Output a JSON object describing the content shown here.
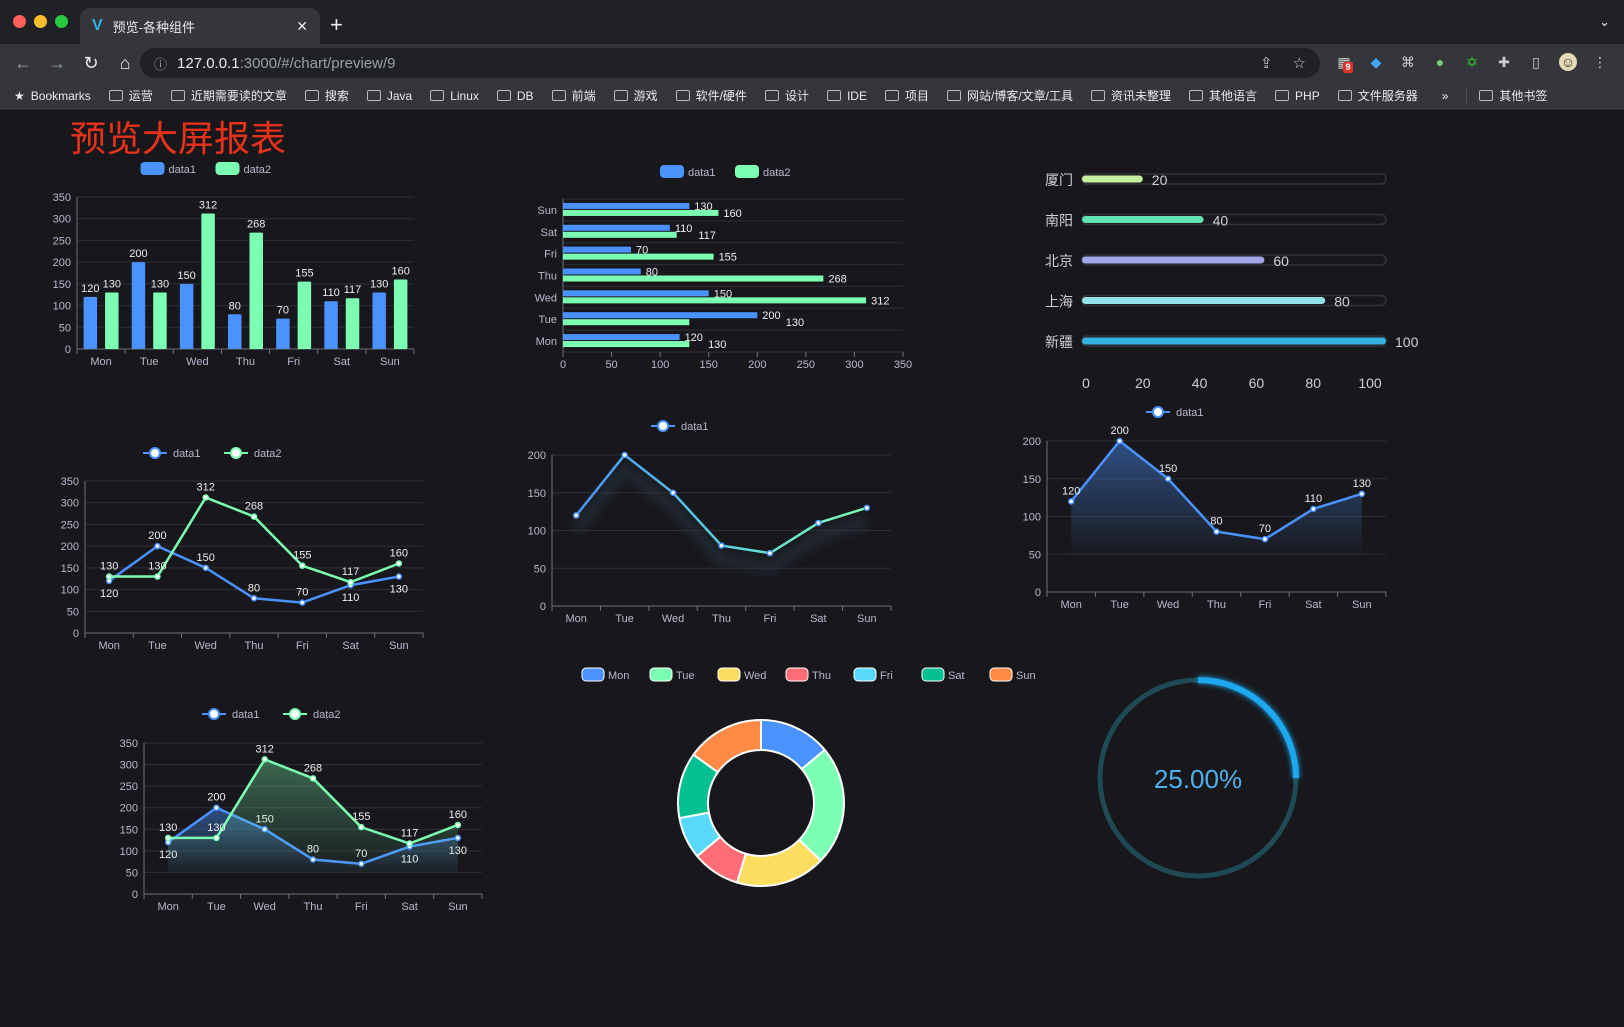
{
  "browser": {
    "tab_title": "预览-各种组件",
    "url_host": "127.0.0.1",
    "url_path": ":3000/#/chart/preview/9",
    "extension_badge": "9",
    "bookmarks": [
      "Bookmarks",
      "运营",
      "近期需要读的文章",
      "搜索",
      "Java",
      "Linux",
      "DB",
      "前端",
      "游戏",
      "软件/硬件",
      "设计",
      "IDE",
      "项目",
      "网站/博客/文章/工具",
      "资讯未整理",
      "其他语言",
      "PHP",
      "文件服务器"
    ],
    "overflow": "»",
    "other_bookmarks": "其他书签"
  },
  "page": {
    "title": "预览大屏报表",
    "title_color": "#e8311a"
  },
  "colors": {
    "data1": "#4992ff",
    "data2": "#7cffb2",
    "grid": "#2e2e34",
    "text": "#b9b8ce"
  },
  "chart_data": [
    {
      "id": "bar-vertical",
      "type": "bar",
      "categories": [
        "Mon",
        "Tue",
        "Wed",
        "Thu",
        "Fri",
        "Sat",
        "Sun"
      ],
      "legend": [
        "data1",
        "data2"
      ],
      "series": [
        {
          "name": "data1",
          "values": [
            120,
            200,
            150,
            80,
            70,
            110,
            130
          ]
        },
        {
          "name": "data2",
          "values": [
            130,
            130,
            312,
            268,
            155,
            117,
            160
          ]
        }
      ],
      "ylim": [
        0,
        350
      ],
      "yticks": [
        0,
        50,
        100,
        150,
        200,
        250,
        300,
        350
      ],
      "grid": true,
      "legend_position": "top"
    },
    {
      "id": "bar-horizontal",
      "type": "bar",
      "orientation": "horizontal",
      "categories": [
        "Mon",
        "Tue",
        "Wed",
        "Thu",
        "Fri",
        "Sat",
        "Sun"
      ],
      "legend": [
        "data1",
        "data2"
      ],
      "series": [
        {
          "name": "data1",
          "values": [
            120,
            200,
            150,
            80,
            70,
            110,
            130
          ]
        },
        {
          "name": "data2",
          "values": [
            130,
            130,
            312,
            268,
            155,
            117,
            160
          ]
        }
      ],
      "xlim": [
        0,
        350
      ],
      "xticks": [
        0,
        50,
        100,
        150,
        200,
        250,
        300,
        350
      ],
      "grid": true,
      "legend_position": "top"
    },
    {
      "id": "progress-bars",
      "type": "bar",
      "orientation": "horizontal",
      "categories": [
        "厦门",
        "南阳",
        "北京",
        "上海",
        "新疆"
      ],
      "values": [
        20,
        40,
        60,
        80,
        100
      ],
      "colors": [
        "#c6f0a0",
        "#62e3b0",
        "#a2a6e8",
        "#92e0e8",
        "#36b1e4"
      ],
      "xlim": [
        0,
        100
      ],
      "xticks": [
        0,
        20,
        40,
        60,
        80,
        100
      ]
    },
    {
      "id": "line-two",
      "type": "line",
      "categories": [
        "Mon",
        "Tue",
        "Wed",
        "Thu",
        "Fri",
        "Sat",
        "Sun"
      ],
      "legend": [
        "data1",
        "data2"
      ],
      "series": [
        {
          "name": "data1",
          "values": [
            120,
            200,
            150,
            80,
            70,
            110,
            130
          ]
        },
        {
          "name": "data2",
          "values": [
            130,
            130,
            312,
            268,
            155,
            117,
            160
          ]
        }
      ],
      "ylim": [
        0,
        350
      ],
      "yticks": [
        0,
        50,
        100,
        150,
        200,
        250,
        300,
        350
      ],
      "grid": true,
      "legend_position": "top"
    },
    {
      "id": "line-gradient",
      "type": "line",
      "categories": [
        "Mon",
        "Tue",
        "Wed",
        "Thu",
        "Fri",
        "Sat",
        "Sun"
      ],
      "legend": [
        "data1"
      ],
      "series": [
        {
          "name": "data1",
          "values": [
            120,
            200,
            150,
            80,
            70,
            110,
            130
          ]
        }
      ],
      "ylim": [
        0,
        200
      ],
      "yticks": [
        0,
        50,
        100,
        150,
        200
      ],
      "grid": true,
      "legend_position": "top"
    },
    {
      "id": "area-single",
      "type": "area",
      "categories": [
        "Mon",
        "Tue",
        "Wed",
        "Thu",
        "Fri",
        "Sat",
        "Sun"
      ],
      "legend": [
        "data1"
      ],
      "series": [
        {
          "name": "data1",
          "values": [
            120,
            200,
            150,
            80,
            70,
            110,
            130
          ]
        }
      ],
      "ylim": [
        0,
        200
      ],
      "yticks": [
        0,
        50,
        100,
        150,
        200
      ],
      "grid": true,
      "legend_position": "top"
    },
    {
      "id": "area-two",
      "type": "area",
      "categories": [
        "Mon",
        "Tue",
        "Wed",
        "Thu",
        "Fri",
        "Sat",
        "Sun"
      ],
      "legend": [
        "data1",
        "data2"
      ],
      "series": [
        {
          "name": "data1",
          "values": [
            120,
            200,
            150,
            80,
            70,
            110,
            130
          ]
        },
        {
          "name": "data2",
          "values": [
            130,
            130,
            312,
            268,
            155,
            117,
            160
          ]
        }
      ],
      "ylim": [
        0,
        350
      ],
      "yticks": [
        0,
        50,
        100,
        150,
        200,
        250,
        300,
        350
      ],
      "grid": true,
      "legend_position": "top"
    },
    {
      "id": "donut",
      "type": "pie",
      "categories": [
        "Mon",
        "Tue",
        "Wed",
        "Thu",
        "Fri",
        "Sat",
        "Sun"
      ],
      "values": [
        120,
        200,
        150,
        80,
        70,
        110,
        130
      ],
      "colors": [
        "#4992ff",
        "#7cffb2",
        "#fddd60",
        "#ff6e76",
        "#58d9f9",
        "#05c091",
        "#ff8a45"
      ],
      "legend_position": "top"
    },
    {
      "id": "gauge",
      "type": "pie",
      "value": 0.25,
      "label": "25.00%",
      "color": "#1aa7ee",
      "track_color": "#1f4a55"
    }
  ]
}
